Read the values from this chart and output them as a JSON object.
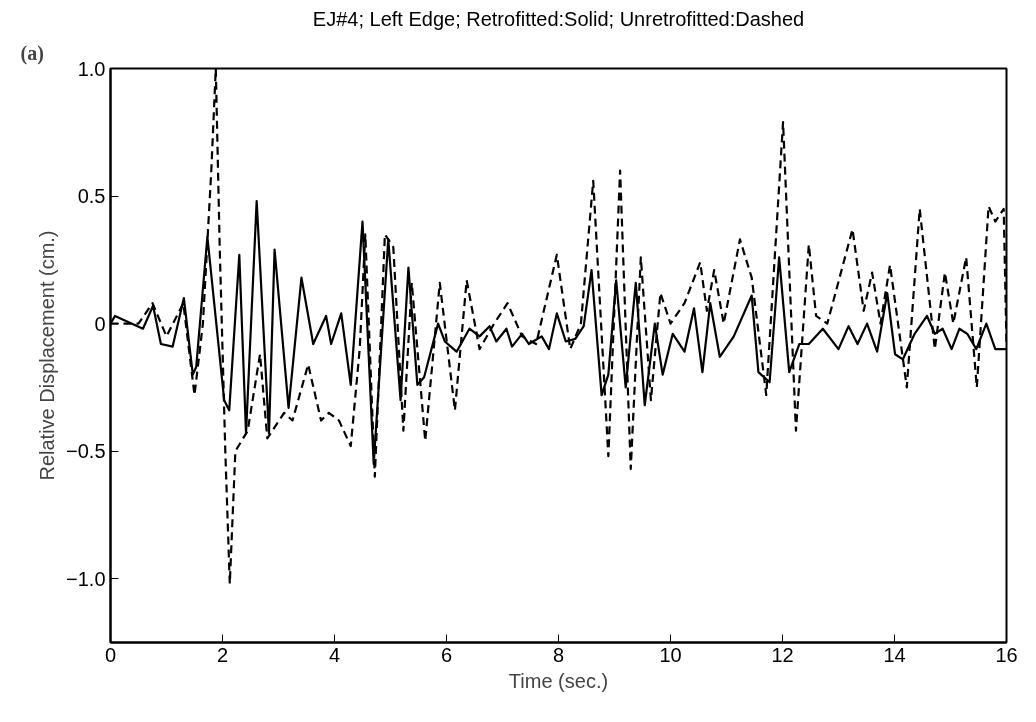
{
  "chart_data": {
    "type": "line",
    "title": "EJ#4; Left Edge; Retrofitted:Solid; Unretrofitted:Dashed",
    "xlabel": "Time (sec.)",
    "ylabel": "Relative Displacement (cm.)",
    "annotations": [
      "(a)"
    ],
    "xlim": [
      0,
      16
    ],
    "ylim": [
      -1.25,
      1.0
    ],
    "xticks": [
      0,
      2,
      4,
      6,
      8,
      10,
      12,
      14,
      16
    ],
    "yticks": [
      {
        "value": -1.0,
        "label": "−1.0"
      },
      {
        "value": -0.5,
        "label": "−0.5"
      },
      0,
      0.5,
      {
        "value": 1.0,
        "label": "1.0"
      }
    ],
    "grid": false,
    "series": [
      {
        "color": "#000000",
        "line_style": "solid",
        "x": [
          0,
          0.08,
          0.58,
          0.76,
          0.9,
          1.11,
          1.31,
          1.47,
          1.53,
          1.73,
          2.03,
          2.12,
          2.3,
          2.42,
          2.61,
          2.83,
          2.93,
          3.18,
          3.41,
          3.62,
          3.85,
          3.94,
          4.12,
          4.29,
          4.5,
          4.7,
          4.96,
          5.18,
          5.32,
          5.48,
          5.6,
          5.85,
          5.97,
          6.18,
          6.41,
          6.59,
          6.77,
          6.89,
          7.07,
          7.17,
          7.35,
          7.47,
          7.7,
          7.83,
          7.97,
          8.13,
          8.3,
          8.45,
          8.59,
          8.77,
          8.89,
          9.03,
          9.2,
          9.38,
          9.54,
          9.72,
          9.86,
          10.04,
          10.25,
          10.42,
          10.57,
          10.71,
          10.88,
          11.13,
          11.45,
          11.57,
          11.77,
          11.94,
          12.12,
          12.3,
          12.47,
          12.72,
          13.0,
          13.18,
          13.34,
          13.51,
          13.69,
          13.87,
          14.01,
          14.15,
          14.36,
          14.58,
          14.72,
          14.86,
          15.02,
          15.16,
          15.3,
          15.46,
          15.64,
          15.8,
          16.0
        ],
        "values": [
          0,
          0.03,
          -0.02,
          0.07,
          -0.08,
          -0.09,
          0.1,
          -0.2,
          -0.17,
          0.34,
          -0.3,
          -0.34,
          0.27,
          -0.43,
          0.48,
          -0.43,
          0.29,
          -0.33,
          0.18,
          -0.08,
          0.03,
          -0.08,
          0.04,
          -0.24,
          0.4,
          -0.55,
          0.33,
          -0.3,
          0.22,
          -0.24,
          -0.21,
          0.0,
          -0.07,
          -0.11,
          -0.02,
          -0.05,
          -0.01,
          -0.07,
          -0.02,
          -0.09,
          -0.04,
          -0.08,
          -0.05,
          -0.1,
          0.04,
          -0.07,
          -0.06,
          -0.01,
          0.21,
          -0.28,
          -0.2,
          0.17,
          -0.25,
          0.16,
          -0.32,
          0.0,
          -0.2,
          -0.04,
          -0.11,
          0.06,
          -0.19,
          0.08,
          -0.13,
          -0.05,
          0.11,
          -0.19,
          -0.23,
          0.26,
          -0.19,
          -0.08,
          -0.08,
          -0.02,
          -0.1,
          -0.01,
          -0.08,
          0.0,
          -0.11,
          0.12,
          -0.12,
          -0.14,
          -0.04,
          0.03,
          -0.04,
          -0.02,
          -0.1,
          -0.02,
          -0.04,
          -0.1,
          0.0,
          -0.1,
          -0.1
        ]
      },
      {
        "color": "#000000",
        "line_style": "dashed",
        "x": [
          0,
          0.5,
          0.75,
          1.0,
          1.3,
          1.5,
          1.65,
          1.8,
          1.88,
          1.95,
          2.05,
          2.13,
          2.23,
          2.45,
          2.67,
          2.8,
          2.95,
          3.1,
          3.25,
          3.53,
          3.76,
          3.9,
          4.08,
          4.29,
          4.45,
          4.55,
          4.72,
          4.9,
          5.05,
          5.23,
          5.38,
          5.62,
          5.88,
          6.15,
          6.36,
          6.59,
          6.85,
          7.09,
          7.35,
          7.6,
          7.97,
          8.21,
          8.4,
          8.62,
          8.89,
          9.1,
          9.29,
          9.47,
          9.65,
          9.82,
          10.0,
          10.25,
          10.53,
          10.65,
          10.78,
          10.95,
          11.24,
          11.45,
          11.71,
          12.01,
          12.24,
          12.47,
          12.6,
          12.8,
          13.25,
          13.45,
          13.6,
          13.75,
          13.92,
          14.22,
          14.45,
          14.72,
          14.9,
          15.05,
          15.28,
          15.47,
          15.68,
          15.8,
          15.95,
          16.0
        ],
        "values": [
          0,
          0.0,
          0.08,
          -0.05,
          0.08,
          -0.28,
          0.0,
          0.6,
          1.0,
          0.3,
          -0.5,
          -1.02,
          -0.5,
          -0.42,
          -0.12,
          -0.45,
          -0.4,
          -0.35,
          -0.38,
          -0.16,
          -0.38,
          -0.35,
          -0.38,
          -0.48,
          -0.1,
          0.35,
          -0.6,
          0.35,
          0.3,
          -0.42,
          0.16,
          -0.46,
          0.16,
          -0.34,
          0.17,
          -0.1,
          0.0,
          0.08,
          -0.05,
          -0.08,
          0.27,
          -0.1,
          0.0,
          0.56,
          -0.52,
          0.6,
          -0.57,
          0.26,
          -0.3,
          0.12,
          0.0,
          0.08,
          0.24,
          0.05,
          0.21,
          0.0,
          0.33,
          0.18,
          -0.28,
          0.79,
          -0.42,
          0.31,
          0.03,
          0.0,
          0.37,
          0.05,
          0.2,
          0.0,
          0.23,
          -0.25,
          0.45,
          -0.1,
          0.2,
          0.0,
          0.26,
          -0.25,
          0.46,
          0.4,
          0.45,
          -0.08
        ]
      }
    ]
  }
}
